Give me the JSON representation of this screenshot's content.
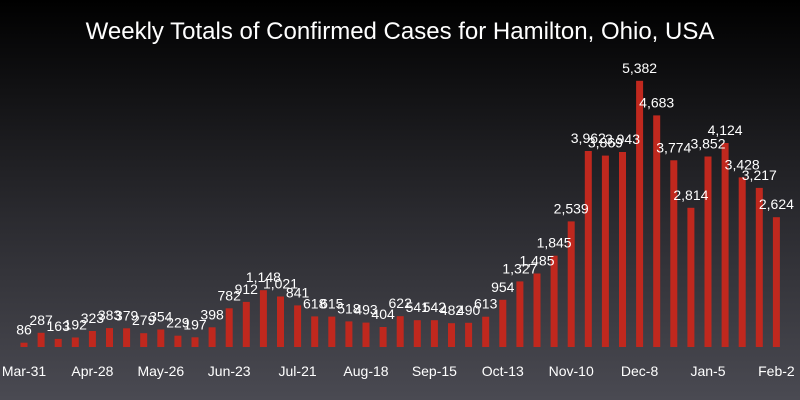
{
  "chart_data": {
    "type": "bar",
    "title": "Weekly Totals of Confirmed Cases for Hamilton, Ohio, USA",
    "xlabel": "",
    "ylabel": "",
    "ylim": [
      0,
      5600
    ],
    "grid": false,
    "colors": {
      "bar": "#c0281e",
      "text": "#ffffff"
    },
    "tick_labels": [
      "Mar-31",
      "Apr-28",
      "May-26",
      "Jun-23",
      "Jul-21",
      "Aug-18",
      "Sep-15",
      "Oct-13",
      "Nov-10",
      "Dec-8",
      "Jan-5",
      "Feb-2"
    ],
    "tick_every": 4,
    "values": [
      86,
      287,
      163,
      192,
      323,
      383,
      379,
      279,
      354,
      229,
      197,
      398,
      782,
      912,
      1148,
      1021,
      841,
      618,
      615,
      518,
      493,
      404,
      622,
      541,
      542,
      482,
      490,
      613,
      954,
      1327,
      1485,
      1845,
      2539,
      3962,
      3869,
      3943,
      5382,
      4683,
      3774,
      2814,
      3852,
      4124,
      3428,
      3217,
      2624
    ],
    "value_labels": [
      "86",
      "287",
      "163",
      "192",
      "323",
      "383",
      "379",
      "279",
      "354",
      "229",
      "197",
      "398",
      "782",
      "912",
      "1,148",
      "1,021",
      "841",
      "618",
      "615",
      "518",
      "493",
      "404",
      "622",
      "541",
      "542",
      "482",
      "490",
      "613",
      "954",
      "1,327",
      "1,485",
      "1,845",
      "2,539",
      "3,962",
      "3,869",
      "3,943",
      "5,382",
      "4,683",
      "3,774",
      "2,814",
      "3,852",
      "4,124",
      "3,428",
      "3,217",
      "2,624"
    ]
  }
}
